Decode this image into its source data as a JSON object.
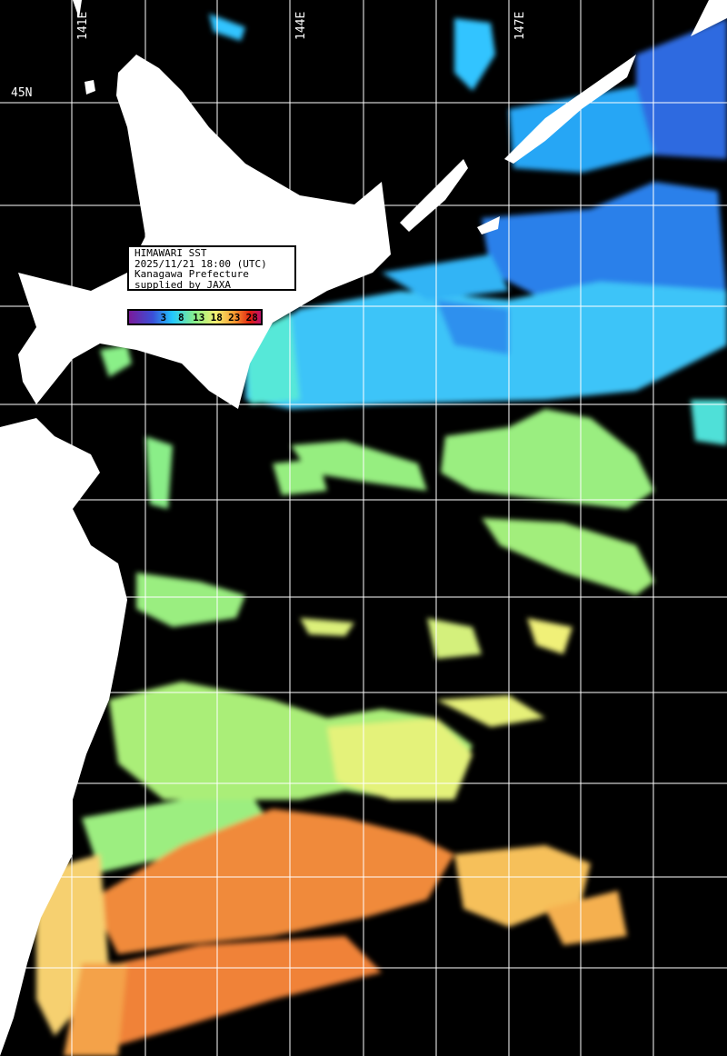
{
  "info": {
    "title": "HIMAWARI SST",
    "datetime": "2025/11/21 18:00 (UTC)",
    "organization": "Kanagawa Prefecture",
    "credit": "supplied by JAXA"
  },
  "legend": {
    "ticks": [
      "3",
      "8",
      "13",
      "18",
      "23",
      "28"
    ],
    "colors": [
      "#7a1a9a",
      "#3a4fd8",
      "#22c8ff",
      "#88f088",
      "#f6f070",
      "#f89a30",
      "#e02010",
      "#c0106a"
    ]
  },
  "grid_labels": {
    "lon": [
      "141E",
      "144E",
      "147E"
    ],
    "lat": [
      "45N"
    ]
  },
  "colors": {
    "land": "#ffffff",
    "no_data": "#000000",
    "grid": "#ffffff"
  }
}
